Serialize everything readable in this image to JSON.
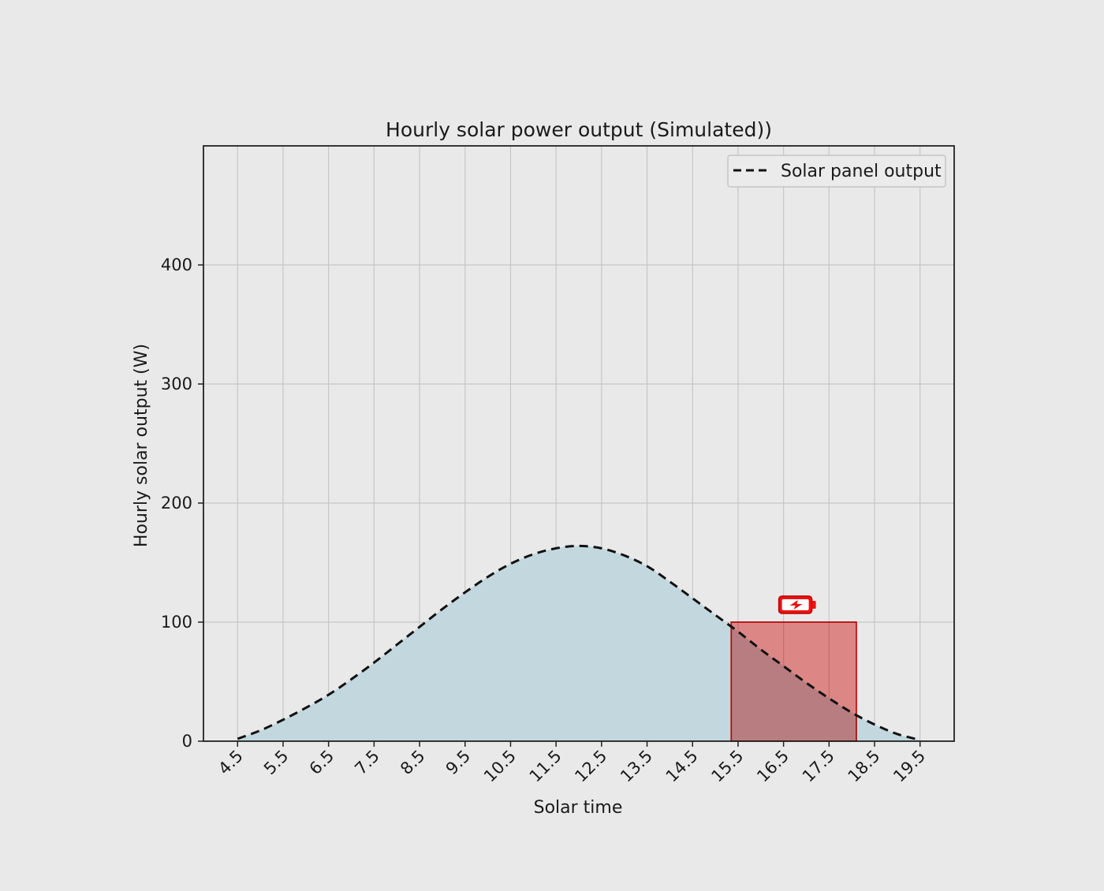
{
  "chart_data": {
    "type": "area",
    "title": "Hourly solar power output (Simulated))",
    "xlabel": "Solar time",
    "ylabel": "Hourly solar output (W)",
    "xlim": [
      3.75,
      20.25
    ],
    "ylim": [
      0,
      500
    ],
    "x_ticks": [
      "4.5",
      "5.5",
      "6.5",
      "7.5",
      "8.5",
      "9.5",
      "10.5",
      "11.5",
      "12.5",
      "13.5",
      "14.5",
      "15.5",
      "16.5",
      "17.5",
      "18.5",
      "19.5"
    ],
    "y_ticks": [
      "0",
      "100",
      "200",
      "300",
      "400"
    ],
    "grid": true,
    "legend_position": "top-right",
    "series": [
      {
        "name": "Solar panel output",
        "line_style": "dashed",
        "color": "#111111",
        "fill_color": "#c2d8de",
        "x": [
          4.5,
          5.0,
          5.5,
          6.0,
          6.5,
          7.0,
          7.5,
          8.0,
          8.5,
          9.0,
          9.5,
          10.0,
          10.5,
          11.0,
          11.5,
          12.0,
          12.5,
          13.0,
          13.5,
          14.0,
          14.5,
          15.0,
          15.5,
          16.0,
          16.5,
          17.0,
          17.5,
          18.0,
          18.5,
          19.0,
          19.5
        ],
        "y": [
          2,
          9,
          18,
          28,
          39,
          52,
          66,
          81,
          96,
          111,
          125,
          138,
          149,
          157,
          162,
          164,
          162,
          156,
          147,
          134,
          120,
          106,
          92,
          77,
          63,
          49,
          36,
          24,
          14,
          6,
          1
        ]
      }
    ],
    "highlight": {
      "x_start": 15.35,
      "x_end": 18.1,
      "y_start": 0,
      "y_end": 100,
      "fill_color": "#f08080",
      "stroke_color": "#dd1111",
      "icon": "battery-charging-icon"
    }
  }
}
